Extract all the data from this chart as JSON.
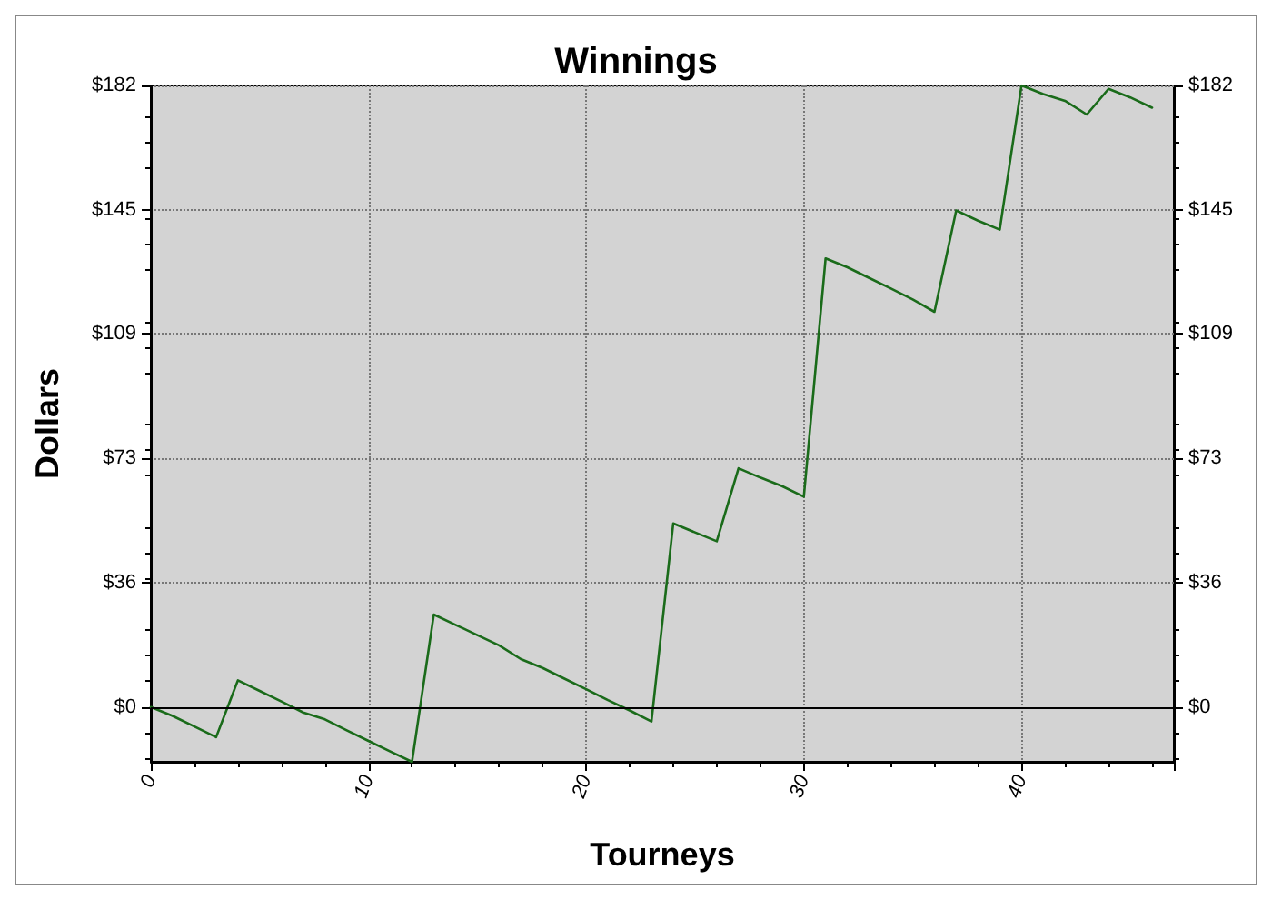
{
  "chart_data": {
    "type": "line",
    "title": "Winnings",
    "xlabel": "Tourneys",
    "ylabel": "Dollars",
    "x": [
      0,
      1,
      2,
      3,
      4,
      5,
      6,
      7,
      8,
      9,
      10,
      11,
      12,
      13,
      14,
      15,
      16,
      17,
      18,
      19,
      20,
      21,
      22,
      23,
      24,
      25,
      26,
      27,
      28,
      29,
      30,
      31,
      32,
      33,
      34,
      35,
      36,
      37,
      38,
      39,
      40,
      41,
      42,
      43,
      44,
      45,
      46
    ],
    "series": [
      {
        "color": "#1a6b1a",
        "values": [
          0,
          -2.6,
          -5.7,
          -8.8,
          7.8,
          4.7,
          1.6,
          -1.6,
          -3.6,
          -6.8,
          -9.9,
          -13,
          -16,
          27,
          24,
          21,
          18,
          14,
          11.4,
          8.3,
          5.2,
          2,
          -1,
          -4.2,
          53.6,
          51,
          48.4,
          69.7,
          67,
          64.5,
          61.4,
          131,
          128.4,
          125.3,
          122.2,
          119,
          115.4,
          145,
          142,
          139.4,
          181.5,
          179,
          177,
          173,
          180.5,
          178,
          175
        ]
      }
    ],
    "xlim": [
      0,
      47
    ],
    "xticks": [
      0,
      10,
      20,
      30,
      40
    ],
    "ylim": [
      -16,
      181.5
    ],
    "yticks": [
      {
        "value": 0,
        "label": "$0"
      },
      {
        "value": 36.3,
        "label": "$36"
      },
      {
        "value": 72.6,
        "label": "$73"
      },
      {
        "value": 108.9,
        "label": "$109"
      },
      {
        "value": 145.2,
        "label": "$145"
      },
      {
        "value": 181.5,
        "label": "$182"
      }
    ],
    "y2lim": [
      -16,
      181.5
    ],
    "y2ticks": [
      {
        "value": 0,
        "label": "$0"
      },
      {
        "value": 36.3,
        "label": "$36"
      },
      {
        "value": 72.6,
        "label": "$73"
      },
      {
        "value": 108.9,
        "label": "$109"
      },
      {
        "value": 145.2,
        "label": "$145"
      },
      {
        "value": 181.5,
        "label": "$182"
      }
    ],
    "ref_lines": [
      {
        "axis": "y",
        "value": 0,
        "color": "#000000"
      }
    ],
    "grid": true,
    "marker": "none",
    "line_style": "solid"
  }
}
